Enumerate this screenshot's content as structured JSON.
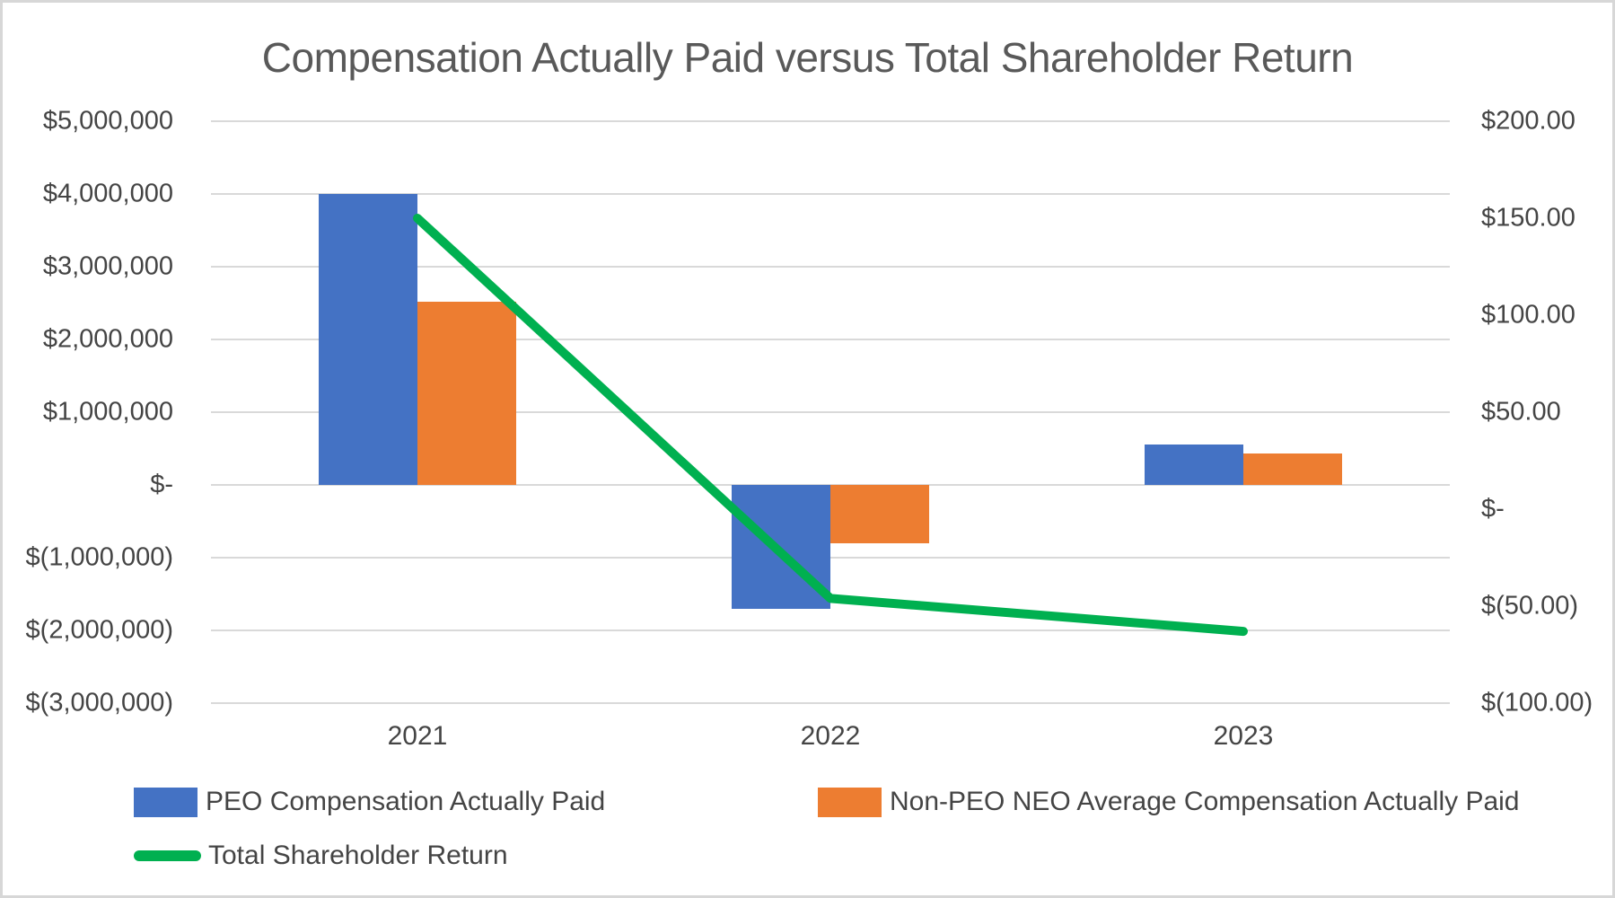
{
  "title": "Compensation Actually Paid versus Total Shareholder Return",
  "chart_data": {
    "type": "combo",
    "categories": [
      "2021",
      "2022",
      "2023"
    ],
    "series": [
      {
        "name": "PEO Compensation Actually Paid",
        "kind": "bar",
        "axis": "left",
        "color": "#4472C4",
        "values": [
          4000000,
          -1700000,
          550000
        ]
      },
      {
        "name": "Non-PEO NEO Average Compensation Actually Paid",
        "kind": "bar",
        "axis": "left",
        "color": "#ED7D31",
        "values": [
          2520000,
          -800000,
          430000
        ]
      },
      {
        "name": "Total Shareholder Return",
        "kind": "line",
        "axis": "right",
        "color": "#00B050",
        "values": [
          150,
          -46,
          -63
        ]
      }
    ],
    "left_axis": {
      "min": -3000000,
      "max": 5000000,
      "tick_step": 1000000,
      "ticks": [
        "$5,000,000",
        "$4,000,000",
        "$3,000,000",
        "$2,000,000",
        "$1,000,000",
        "$-",
        "$(1,000,000)",
        "$(2,000,000)",
        "$(3,000,000)"
      ]
    },
    "right_axis": {
      "min": -100,
      "max": 200,
      "tick_step": 50,
      "ticks": [
        "$200.00",
        "$150.00",
        "$100.00",
        "$50.00",
        "$-",
        "$(50.00)",
        "$(100.00)"
      ]
    },
    "grid": true,
    "legend_position": "bottom",
    "gridline_color": "#D9D9D9",
    "axis_text_color": "#444444",
    "title_color": "#595959"
  }
}
